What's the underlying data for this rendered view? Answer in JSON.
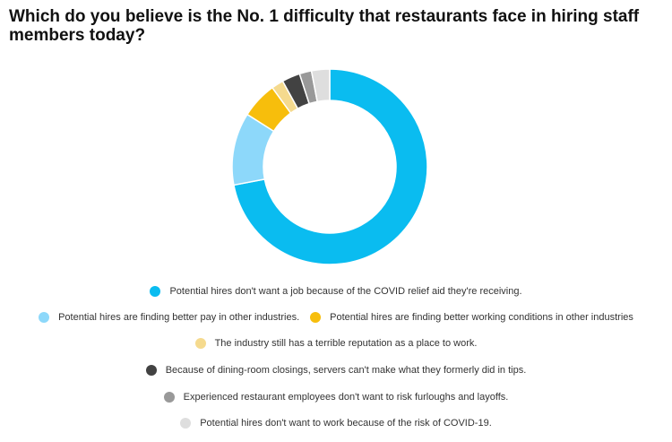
{
  "chart_data": {
    "type": "pie",
    "title": "Which do you believe is the No. 1 difficulty that restaurants face in hiring staff members today?",
    "donut": true,
    "legend_position": "bottom",
    "series": [
      {
        "name": "Potential hires don't want a job because of the COVID relief aid they're receiving.",
        "value": 72,
        "color": "#0ABCF0"
      },
      {
        "name": "Potential hires are finding better pay in other industries.",
        "value": 12,
        "color": "#8DD8FA"
      },
      {
        "name": "Potential hires are finding better working conditions in other industries",
        "value": 6,
        "color": "#F7BE0C"
      },
      {
        "name": "The industry still has a terrible reputation as a place to work.",
        "value": 2,
        "color": "#F5DA8E"
      },
      {
        "name": "Because of dining-room closings, servers can't make what they formerly did in tips.",
        "value": 3,
        "color": "#424242"
      },
      {
        "name": "Experienced restaurant employees don't want to risk furloughs and layoffs.",
        "value": 2,
        "color": "#999999"
      },
      {
        "name": "Potential hires don't want to work because of the risk of COVID-19.",
        "value": 3,
        "color": "#DEDEDE"
      }
    ]
  }
}
